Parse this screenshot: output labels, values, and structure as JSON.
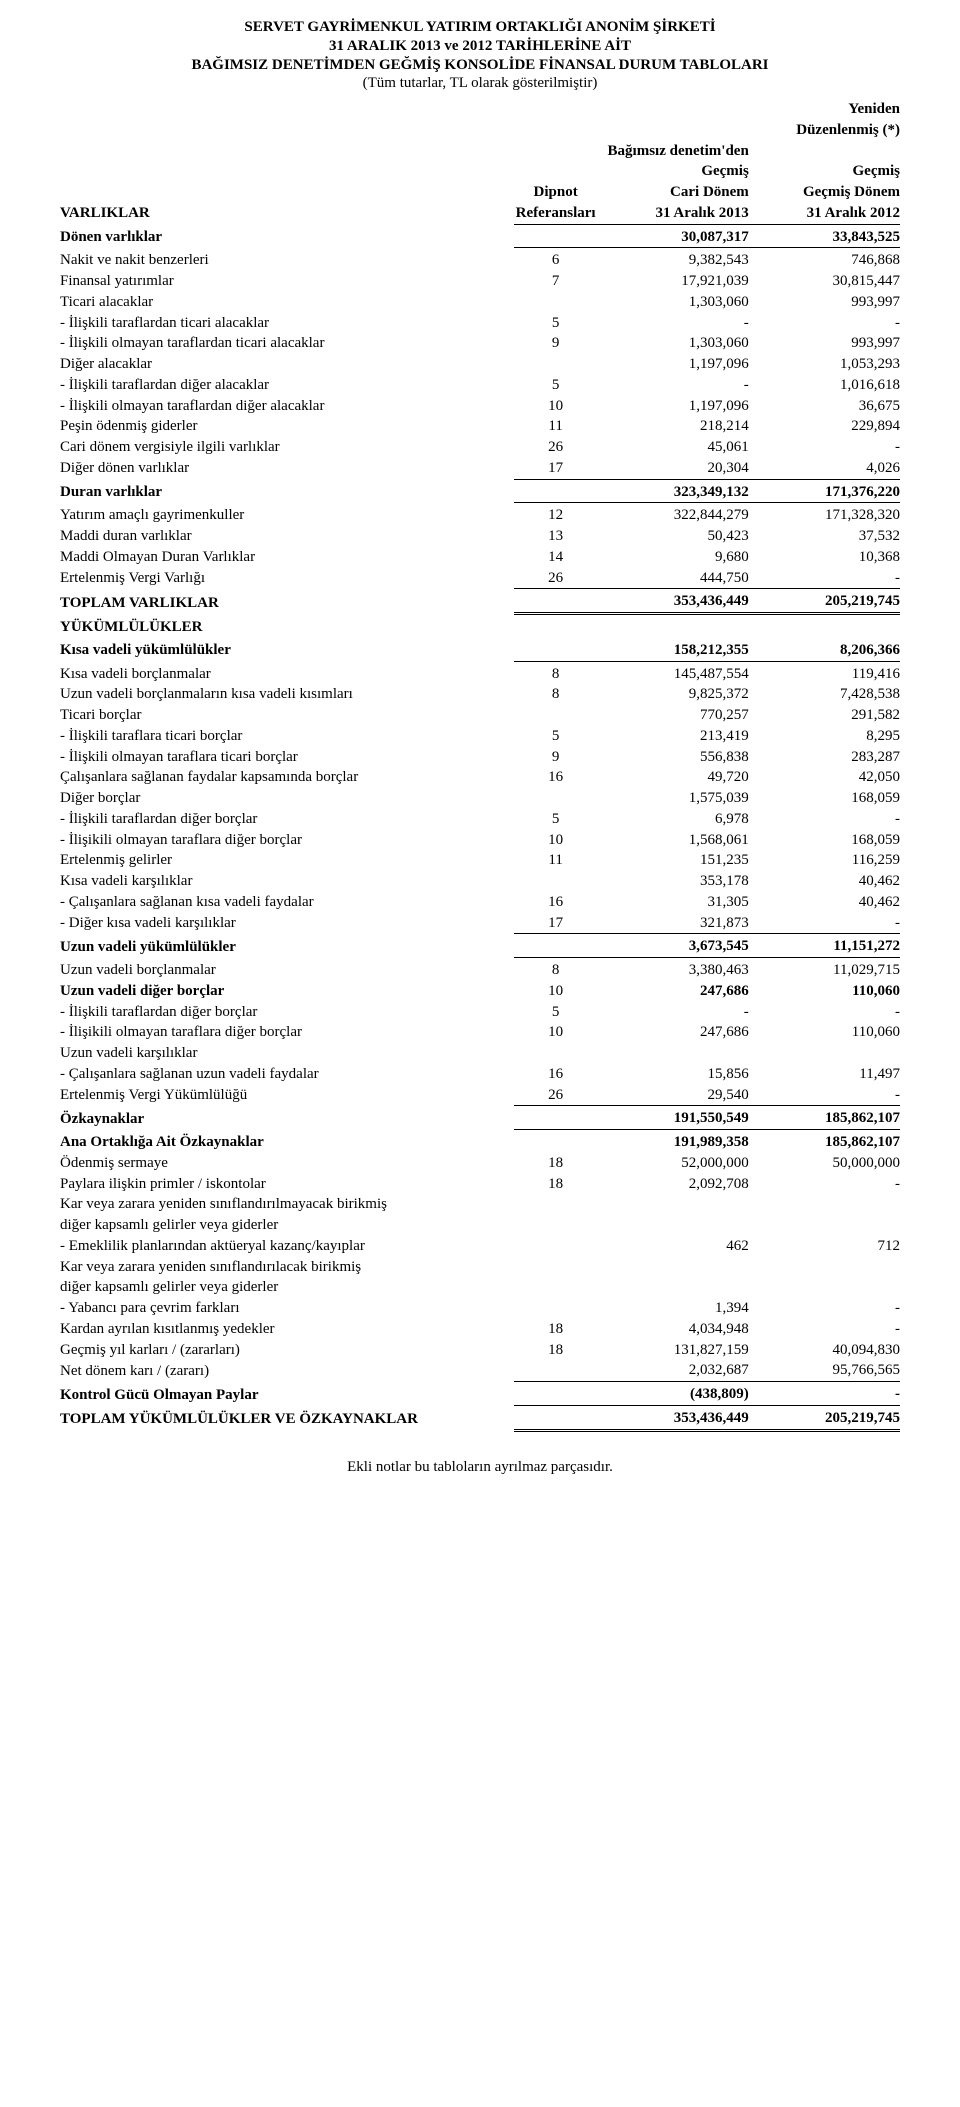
{
  "header": {
    "company": "SERVET GAYRİMENKUL YATIRIM ORTAKLIĞI ANONİM ŞİRKETİ",
    "period": "31 ARALIK 2013 ve 2012 TARİHLERİNE AİT",
    "title": "BAĞIMSIZ DENETİMDEN GEĞMİŞ KONSOLİDE FİNANSAL DURUM TABLOLARI",
    "currency_note": "(Tüm tutarlar, TL olarak gösterilmiştir)",
    "yeniden": "Yeniden",
    "duzenlenmis": "Düzenlenmiş (*)",
    "bagimsiz": "Bağımsız denetim'den",
    "gecmis": "Geçmiş",
    "dipnot_l1": "Dipnot",
    "dipnot_l2": "Referansları",
    "cari_l1": "Cari Dönem",
    "cari_l2": "31 Aralık 2013",
    "gecmis_l1": "Geçmiş Dönem",
    "gecmis_l2": "31 Aralık 2012"
  },
  "labels": {
    "varliklar": "VARLIKLAR",
    "yukumlulukler": "YÜKÜMLÜLÜKLER"
  },
  "rows": {
    "donen_varliklar": {
      "label": "Dönen varlıklar",
      "ref": "",
      "v1": "30,087,317",
      "v2": "33,843,525",
      "bold": true,
      "uline": true
    },
    "nakit": {
      "label": "Nakit ve nakit benzerleri",
      "ref": "6",
      "v1": "9,382,543",
      "v2": "746,868"
    },
    "finansal_yatirimlar": {
      "label": "Finansal yatırımlar",
      "ref": "7",
      "v1": "17,921,039",
      "v2": "30,815,447"
    },
    "ticari_alacaklar": {
      "label": "Ticari alacaklar",
      "ref": "",
      "v1": "1,303,060",
      "v2": "993,997"
    },
    "ta_iliskili": {
      "label": "- İlişkili taraflardan ticari alacaklar",
      "ref": "5",
      "v1": "-",
      "v2": "-",
      "indent": true
    },
    "ta_olmayan": {
      "label": "- İlişkili olmayan taraflardan ticari alacaklar",
      "ref": "9",
      "v1": "1,303,060",
      "v2": "993,997",
      "indent": true
    },
    "diger_alacaklar": {
      "label": "Diğer alacaklar",
      "ref": "",
      "v1": "1,197,096",
      "v2": "1,053,293"
    },
    "da_iliskili": {
      "label": "- İlişkili taraflardan diğer alacaklar",
      "ref": "5",
      "v1": "-",
      "v2": "1,016,618",
      "indent": true
    },
    "da_olmayan": {
      "label": "- İlişkili olmayan taraflardan diğer alacaklar",
      "ref": "10",
      "v1": "1,197,096",
      "v2": "36,675",
      "indent": true
    },
    "pesin": {
      "label": "Peşin ödenmiş giderler",
      "ref": "11",
      "v1": "218,214",
      "v2": "229,894"
    },
    "cari_donem_vergi": {
      "label": "Cari dönem vergisiyle ilgili varlıklar",
      "ref": "26",
      "v1": "45,061",
      "v2": "-"
    },
    "diger_donen": {
      "label": "Diğer dönen varlıklar",
      "ref": "17",
      "v1": "20,304",
      "v2": "4,026",
      "uline": true
    },
    "duran_varliklar": {
      "label": "Duran varlıklar",
      "ref": "",
      "v1": "323,349,132",
      "v2": "171,376,220",
      "bold": true,
      "uline": true
    },
    "yatirim_gayri": {
      "label": "Yatırım amaçlı gayrimenkuller",
      "ref": "12",
      "v1": "322,844,279",
      "v2": "171,328,320"
    },
    "maddi_duran": {
      "label": "Maddi duran varlıklar",
      "ref": "13",
      "v1": "50,423",
      "v2": "37,532"
    },
    "maddi_olmayan": {
      "label": "Maddi Olmayan Duran Varlıklar",
      "ref": "14",
      "v1": "9,680",
      "v2": "10,368"
    },
    "ertelenmis_vergi_v": {
      "label": "Ertelenmiş Vergi Varlığı",
      "ref": "26",
      "v1": "444,750",
      "v2": "-",
      "uline": true
    },
    "toplam_varliklar": {
      "label": "TOPLAM VARLIKLAR",
      "ref": "",
      "v1": "353,436,449",
      "v2": "205,219,745",
      "bold": true,
      "dline": true
    },
    "kv_yukum": {
      "label": "Kısa vadeli yükümlülükler",
      "ref": "",
      "v1": "158,212,355",
      "v2": "8,206,366",
      "bold": true,
      "uline": true
    },
    "kv_borclanmalar": {
      "label": "Kısa vadeli borçlanmalar",
      "ref": "8",
      "v1": "145,487,554",
      "v2": "119,416"
    },
    "uv_kisavadeli": {
      "label": "Uzun vadeli borçlanmaların kısa vadeli kısımları",
      "ref": "8",
      "v1": "9,825,372",
      "v2": "7,428,538"
    },
    "ticari_borclar": {
      "label": "Ticari borçlar",
      "ref": "",
      "v1": "770,257",
      "v2": "291,582"
    },
    "tb_iliskili": {
      "label": "- İlişkili taraflara ticari borçlar",
      "ref": "5",
      "v1": "213,419",
      "v2": "8,295",
      "indent": true
    },
    "tb_olmayan": {
      "label": "- İlişkili olmayan taraflara ticari borçlar",
      "ref": "9",
      "v1": "556,838",
      "v2": "283,287",
      "indent": true
    },
    "calisanlara_fayda": {
      "label": "Çalışanlara sağlanan faydalar kapsamında borçlar",
      "ref": "16",
      "v1": "49,720",
      "v2": "42,050"
    },
    "diger_borclar": {
      "label": "Diğer borçlar",
      "ref": "",
      "v1": "1,575,039",
      "v2": "168,059"
    },
    "db_iliskili": {
      "label": "- İlişkili taraflardan diğer borçlar",
      "ref": "5",
      "v1": "6,978",
      "v2": "-",
      "indent": true
    },
    "db_olmayan": {
      "label": "- İlişikili olmayan taraflara diğer borçlar",
      "ref": "10",
      "v1": "1,568,061",
      "v2": "168,059",
      "indent": true
    },
    "ertelenmis_gelirler": {
      "label": "Ertelenmiş gelirler",
      "ref": "11",
      "v1": "151,235",
      "v2": "116,259"
    },
    "kv_karsiliklar": {
      "label": "Kısa vadeli karşılıklar",
      "ref": "",
      "v1": "353,178",
      "v2": "40,462"
    },
    "kv_kars_calisan": {
      "label": "- Çalışanlara sağlanan kısa vadeli faydalar",
      "ref": "16",
      "v1": "31,305",
      "v2": "40,462",
      "indent": true
    },
    "kv_kars_diger": {
      "label": "- Diğer kısa vadeli karşılıklar",
      "ref": "17",
      "v1": "321,873",
      "v2": "-",
      "indent": true,
      "uline": true
    },
    "uv_yukum": {
      "label": "Uzun vadeli yükümlülükler",
      "ref": "",
      "v1": "3,673,545",
      "v2": "11,151,272",
      "bold": true,
      "uline": true
    },
    "uv_borclanmalar": {
      "label": "Uzun vadeli borçlanmalar",
      "ref": "8",
      "v1": "3,380,463",
      "v2": "11,029,715"
    },
    "uv_diger_borclar": {
      "label": "Uzun vadeli diğer borçlar",
      "ref": "10",
      "v1": "247,686",
      "v2": "110,060",
      "bold": true
    },
    "uv_db_iliskili": {
      "label": "- İlişkili taraflardan diğer borçlar",
      "ref": "5",
      "v1": "-",
      "v2": "-",
      "indent": true
    },
    "uv_db_olmayan": {
      "label": "- İlişikili olmayan taraflara diğer borçlar",
      "ref": "10",
      "v1": "247,686",
      "v2": "110,060",
      "indent": true
    },
    "uv_karsiliklar": {
      "label": "Uzun vadeli karşılıklar",
      "ref": "",
      "v1": "",
      "v2": ""
    },
    "uv_calisan_fayda": {
      "label": "- Çalışanlara sağlanan uzun vadeli faydalar",
      "ref": "16",
      "v1": "15,856",
      "v2": "11,497",
      "indent": true
    },
    "ertelenmis_vergi_y": {
      "label": "Ertelenmiş Vergi Yükümlülüğü",
      "ref": "26",
      "v1": "29,540",
      "v2": "-",
      "uline": true
    },
    "ozkaynaklar": {
      "label": "Özkaynaklar",
      "ref": "",
      "v1": "191,550,549",
      "v2": "185,862,107",
      "bold": true,
      "uline": true
    },
    "ana_ortaklik": {
      "label": "Ana Ortaklığa Ait Özkaynaklar",
      "ref": "",
      "v1": "191,989,358",
      "v2": "185,862,107",
      "bold": true
    },
    "odenmis_sermaye": {
      "label": "Ödenmiş sermaye",
      "ref": "18",
      "v1": "52,000,000",
      "v2": "50,000,000"
    },
    "paylara_primler": {
      "label": "Paylara ilişkin primler / iskontolar",
      "ref": "18",
      "v1": "2,092,708",
      "v2": "-"
    },
    "kar_zarar_sinif_olmayan_l1": {
      "label": "Kar veya zarara yeniden sınıflandırılmayacak birikmiş",
      "ref": "",
      "v1": "",
      "v2": ""
    },
    "kar_zarar_sinif_olmayan_l2": {
      "label": "diğer kapsamlı gelirler veya giderler",
      "ref": "",
      "v1": "",
      "v2": "",
      "indent": true
    },
    "emeklilik": {
      "label": "- Emeklilik planlarından aktüeryal kazanç/kayıplar",
      "ref": "",
      "v1": "462",
      "v2": "712",
      "indent": true
    },
    "kar_zarar_sinif_l1": {
      "label": "Kar veya zarara yeniden sınıflandırılacak birikmiş",
      "ref": "",
      "v1": "",
      "v2": ""
    },
    "kar_zarar_sinif_l2": {
      "label": "diğer kapsamlı gelirler veya giderler",
      "ref": "",
      "v1": "",
      "v2": "",
      "indent": true
    },
    "yabanci_para": {
      "label": "- Yabancı para çevrim farkları",
      "ref": "",
      "v1": "1,394",
      "v2": "-",
      "indent": true
    },
    "kardan_ayrilan": {
      "label": "Kardan ayrılan kısıtlanmış yedekler",
      "ref": "18",
      "v1": "4,034,948",
      "v2": "-"
    },
    "gecmis_yil": {
      "label": "Geçmiş yıl karları / (zararları)",
      "ref": "18",
      "v1": "131,827,159",
      "v2": "40,094,830"
    },
    "net_donem": {
      "label": "Net dönem karı / (zararı)",
      "ref": "",
      "v1": "2,032,687",
      "v2": "95,766,565",
      "uline": true
    },
    "kontrol_gucu": {
      "label": "Kontrol Gücü Olmayan Paylar",
      "ref": "",
      "v1": "(438,809)",
      "v2": "-",
      "bold": true,
      "uline": true
    },
    "toplam_yukum": {
      "label": "TOPLAM YÜKÜMLÜLÜKLER VE ÖZKAYNAKLAR",
      "ref": "",
      "v1": "353,436,449",
      "v2": "205,219,745",
      "bold": true,
      "dline": true
    }
  },
  "footer": "Ekli notlar bu tabloların ayrılmaz parçasıdır."
}
